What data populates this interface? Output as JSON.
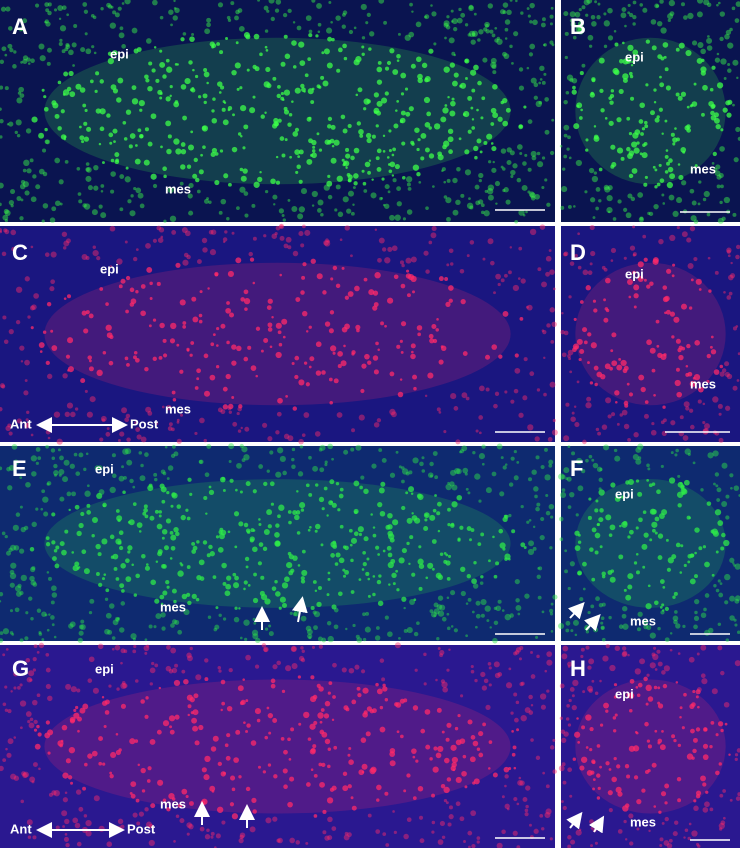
{
  "panels": [
    {
      "letter": "A",
      "labels": [
        "epi",
        "mes"
      ]
    },
    {
      "letter": "B",
      "labels": [
        "epi",
        "mes"
      ]
    },
    {
      "letter": "C",
      "labels": [
        "epi",
        "mes"
      ],
      "axis": [
        "Ant",
        "Post"
      ]
    },
    {
      "letter": "D",
      "labels": [
        "epi",
        "mes"
      ]
    },
    {
      "letter": "E",
      "labels": [
        "epi",
        "mes"
      ]
    },
    {
      "letter": "F",
      "labels": [
        "epi",
        "mes"
      ]
    },
    {
      "letter": "G",
      "labels": [
        "epi",
        "mes"
      ],
      "axis": [
        "Ant",
        "Post"
      ]
    },
    {
      "letter": "H",
      "labels": [
        "epi",
        "mes"
      ]
    }
  ]
}
